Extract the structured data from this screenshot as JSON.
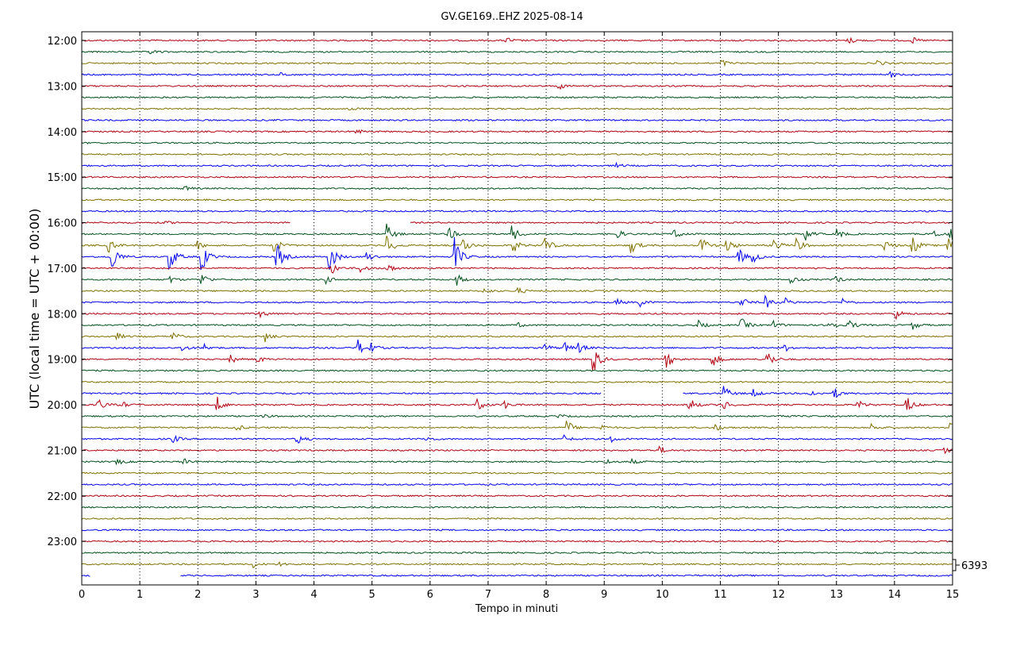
{
  "chart_data": {
    "type": "line",
    "title": "GV.GE169..EHZ 2025-08-14",
    "xlabel": "Tempo in minuti",
    "ylabel": "UTC (local time = UTC + 00:00)",
    "xlim": [
      0,
      15
    ],
    "x_ticks": [
      "0",
      "1",
      "2",
      "3",
      "4",
      "5",
      "6",
      "7",
      "8",
      "9",
      "10",
      "11",
      "12",
      "13",
      "14",
      "15"
    ],
    "y_ticks": [
      "12:00",
      "13:00",
      "14:00",
      "15:00",
      "16:00",
      "17:00",
      "18:00",
      "19:00",
      "20:00",
      "21:00",
      "22:00",
      "23:00"
    ],
    "grid": "vertical-dotted",
    "trace_count": 48,
    "trace_interval_minutes": 15,
    "trace_colors": [
      "#b00010",
      "#00501a",
      "#807000",
      "#0000ee"
    ],
    "scale_label": "6393",
    "gaps": [
      {
        "trace": 16,
        "from": 3.6,
        "to": 5.65
      },
      {
        "trace": 31,
        "from": 8.95,
        "to": 10.35
      },
      {
        "trace": 47,
        "from": 0.15,
        "to": 1.7
      }
    ],
    "events": [
      {
        "trace": 0,
        "x": 7.3,
        "amp": 5
      },
      {
        "trace": 0,
        "x": 13.2,
        "amp": 5
      },
      {
        "trace": 0,
        "x": 14.3,
        "amp": 4
      },
      {
        "trace": 1,
        "x": 1.15,
        "amp": 4
      },
      {
        "trace": 2,
        "x": 11.0,
        "amp": 6
      },
      {
        "trace": 2,
        "x": 13.7,
        "amp": 4
      },
      {
        "trace": 3,
        "x": 3.4,
        "amp": 3
      },
      {
        "trace": 3,
        "x": 13.9,
        "amp": 5
      },
      {
        "trace": 4,
        "x": 8.2,
        "amp": 5
      },
      {
        "trace": 6,
        "x": 4.6,
        "amp": 3
      },
      {
        "trace": 8,
        "x": 4.7,
        "amp": 4
      },
      {
        "trace": 11,
        "x": 9.2,
        "amp": 3
      },
      {
        "trace": 13,
        "x": 1.75,
        "amp": 4
      },
      {
        "trace": 16,
        "x": 1.4,
        "amp": 3
      },
      {
        "trace": 17,
        "x": 5.25,
        "amp": 13
      },
      {
        "trace": 17,
        "x": 6.3,
        "amp": 10
      },
      {
        "trace": 17,
        "x": 7.4,
        "amp": 12
      },
      {
        "trace": 17,
        "x": 9.2,
        "amp": 7
      },
      {
        "trace": 17,
        "x": 10.2,
        "amp": 8
      },
      {
        "trace": 17,
        "x": 12.45,
        "amp": 9
      },
      {
        "trace": 17,
        "x": 13.0,
        "amp": 7
      },
      {
        "trace": 17,
        "x": 14.65,
        "amp": 8
      },
      {
        "trace": 17,
        "x": 14.95,
        "amp": 12
      },
      {
        "trace": 18,
        "x": 0.45,
        "amp": 10
      },
      {
        "trace": 18,
        "x": 1.95,
        "amp": 8
      },
      {
        "trace": 18,
        "x": 3.3,
        "amp": 12
      },
      {
        "trace": 18,
        "x": 5.25,
        "amp": 14
      },
      {
        "trace": 18,
        "x": 6.55,
        "amp": 12
      },
      {
        "trace": 18,
        "x": 7.4,
        "amp": 13
      },
      {
        "trace": 18,
        "x": 7.95,
        "amp": 15
      },
      {
        "trace": 18,
        "x": 9.45,
        "amp": 12
      },
      {
        "trace": 18,
        "x": 10.65,
        "amp": 15
      },
      {
        "trace": 18,
        "x": 11.1,
        "amp": 11
      },
      {
        "trace": 18,
        "x": 11.9,
        "amp": 12
      },
      {
        "trace": 18,
        "x": 12.3,
        "amp": 10
      },
      {
        "trace": 18,
        "x": 13.8,
        "amp": 11
      },
      {
        "trace": 18,
        "x": 14.3,
        "amp": 13
      },
      {
        "trace": 18,
        "x": 14.9,
        "amp": 14
      },
      {
        "trace": 19,
        "x": 0.5,
        "amp": 22
      },
      {
        "trace": 19,
        "x": 1.5,
        "amp": 22
      },
      {
        "trace": 19,
        "x": 2.05,
        "amp": 22
      },
      {
        "trace": 19,
        "x": 3.35,
        "amp": 20
      },
      {
        "trace": 19,
        "x": 4.25,
        "amp": 24
      },
      {
        "trace": 19,
        "x": 4.9,
        "amp": 7
      },
      {
        "trace": 19,
        "x": 6.4,
        "amp": 30
      },
      {
        "trace": 19,
        "x": 11.3,
        "amp": 12
      },
      {
        "trace": 19,
        "x": 11.55,
        "amp": 8
      },
      {
        "trace": 20,
        "x": 4.3,
        "amp": 8
      },
      {
        "trace": 20,
        "x": 4.8,
        "amp": 6
      },
      {
        "trace": 20,
        "x": 5.25,
        "amp": 7
      },
      {
        "trace": 21,
        "x": 1.5,
        "amp": 5
      },
      {
        "trace": 21,
        "x": 2.05,
        "amp": 9
      },
      {
        "trace": 21,
        "x": 4.2,
        "amp": 5
      },
      {
        "trace": 21,
        "x": 6.45,
        "amp": 8
      },
      {
        "trace": 21,
        "x": 12.2,
        "amp": 6
      },
      {
        "trace": 21,
        "x": 12.95,
        "amp": 6
      },
      {
        "trace": 22,
        "x": 6.9,
        "amp": 4
      },
      {
        "trace": 22,
        "x": 7.5,
        "amp": 5
      },
      {
        "trace": 23,
        "x": 9.2,
        "amp": 5
      },
      {
        "trace": 23,
        "x": 9.6,
        "amp": 6
      },
      {
        "trace": 23,
        "x": 11.35,
        "amp": 7
      },
      {
        "trace": 23,
        "x": 11.75,
        "amp": 11
      },
      {
        "trace": 23,
        "x": 12.1,
        "amp": 6
      },
      {
        "trace": 23,
        "x": 13.1,
        "amp": 5
      },
      {
        "trace": 24,
        "x": 3.05,
        "amp": 6
      },
      {
        "trace": 24,
        "x": 14.0,
        "amp": 8
      },
      {
        "trace": 25,
        "x": 7.5,
        "amp": 3
      },
      {
        "trace": 25,
        "x": 10.6,
        "amp": 7
      },
      {
        "trace": 25,
        "x": 11.35,
        "amp": 10
      },
      {
        "trace": 25,
        "x": 11.9,
        "amp": 6
      },
      {
        "trace": 25,
        "x": 12.85,
        "amp": 9
      },
      {
        "trace": 25,
        "x": 13.2,
        "amp": 8
      },
      {
        "trace": 25,
        "x": 14.3,
        "amp": 6
      },
      {
        "trace": 26,
        "x": 0.6,
        "amp": 5
      },
      {
        "trace": 26,
        "x": 1.55,
        "amp": 7
      },
      {
        "trace": 26,
        "x": 3.15,
        "amp": 7
      },
      {
        "trace": 27,
        "x": 1.7,
        "amp": 5
      },
      {
        "trace": 27,
        "x": 2.1,
        "amp": 5
      },
      {
        "trace": 27,
        "x": 4.75,
        "amp": 11
      },
      {
        "trace": 27,
        "x": 4.95,
        "amp": 7
      },
      {
        "trace": 27,
        "x": 7.95,
        "amp": 7
      },
      {
        "trace": 27,
        "x": 8.3,
        "amp": 8
      },
      {
        "trace": 27,
        "x": 8.55,
        "amp": 7
      },
      {
        "trace": 27,
        "x": 12.1,
        "amp": 5
      },
      {
        "trace": 28,
        "x": 2.55,
        "amp": 6
      },
      {
        "trace": 28,
        "x": 3.0,
        "amp": 6
      },
      {
        "trace": 28,
        "x": 8.8,
        "amp": 20
      },
      {
        "trace": 28,
        "x": 10.05,
        "amp": 14
      },
      {
        "trace": 28,
        "x": 10.85,
        "amp": 12
      },
      {
        "trace": 28,
        "x": 11.8,
        "amp": 13
      },
      {
        "trace": 31,
        "x": 11.05,
        "amp": 10
      },
      {
        "trace": 31,
        "x": 11.55,
        "amp": 6
      },
      {
        "trace": 31,
        "x": 12.5,
        "amp": 7
      },
      {
        "trace": 31,
        "x": 12.95,
        "amp": 8
      },
      {
        "trace": 32,
        "x": 0.25,
        "amp": 12
      },
      {
        "trace": 32,
        "x": 0.65,
        "amp": 6
      },
      {
        "trace": 32,
        "x": 2.3,
        "amp": 14
      },
      {
        "trace": 32,
        "x": 6.8,
        "amp": 9
      },
      {
        "trace": 32,
        "x": 7.25,
        "amp": 7
      },
      {
        "trace": 32,
        "x": 10.45,
        "amp": 11
      },
      {
        "trace": 32,
        "x": 11.05,
        "amp": 6
      },
      {
        "trace": 32,
        "x": 13.35,
        "amp": 7
      },
      {
        "trace": 32,
        "x": 14.2,
        "amp": 12
      },
      {
        "trace": 33,
        "x": 3.1,
        "amp": 3
      },
      {
        "trace": 33,
        "x": 8.2,
        "amp": 3
      },
      {
        "trace": 33,
        "x": 12.0,
        "amp": 3
      },
      {
        "trace": 34,
        "x": 2.65,
        "amp": 5
      },
      {
        "trace": 34,
        "x": 8.35,
        "amp": 10
      },
      {
        "trace": 34,
        "x": 8.9,
        "amp": 5
      },
      {
        "trace": 34,
        "x": 10.9,
        "amp": 5
      },
      {
        "trace": 34,
        "x": 13.6,
        "amp": 5
      },
      {
        "trace": 34,
        "x": 14.95,
        "amp": 8
      },
      {
        "trace": 35,
        "x": 1.55,
        "amp": 6
      },
      {
        "trace": 35,
        "x": 3.7,
        "amp": 7
      },
      {
        "trace": 35,
        "x": 5.9,
        "amp": 4
      },
      {
        "trace": 35,
        "x": 8.3,
        "amp": 5
      },
      {
        "trace": 35,
        "x": 9.1,
        "amp": 5
      },
      {
        "trace": 36,
        "x": 9.95,
        "amp": 5
      },
      {
        "trace": 36,
        "x": 14.85,
        "amp": 4
      },
      {
        "trace": 37,
        "x": 0.6,
        "amp": 4
      },
      {
        "trace": 37,
        "x": 1.75,
        "amp": 4
      },
      {
        "trace": 37,
        "x": 9.0,
        "amp": 4
      },
      {
        "trace": 37,
        "x": 9.45,
        "amp": 4
      },
      {
        "trace": 46,
        "x": 2.95,
        "amp": 4
      },
      {
        "trace": 46,
        "x": 3.4,
        "amp": 3
      }
    ]
  }
}
